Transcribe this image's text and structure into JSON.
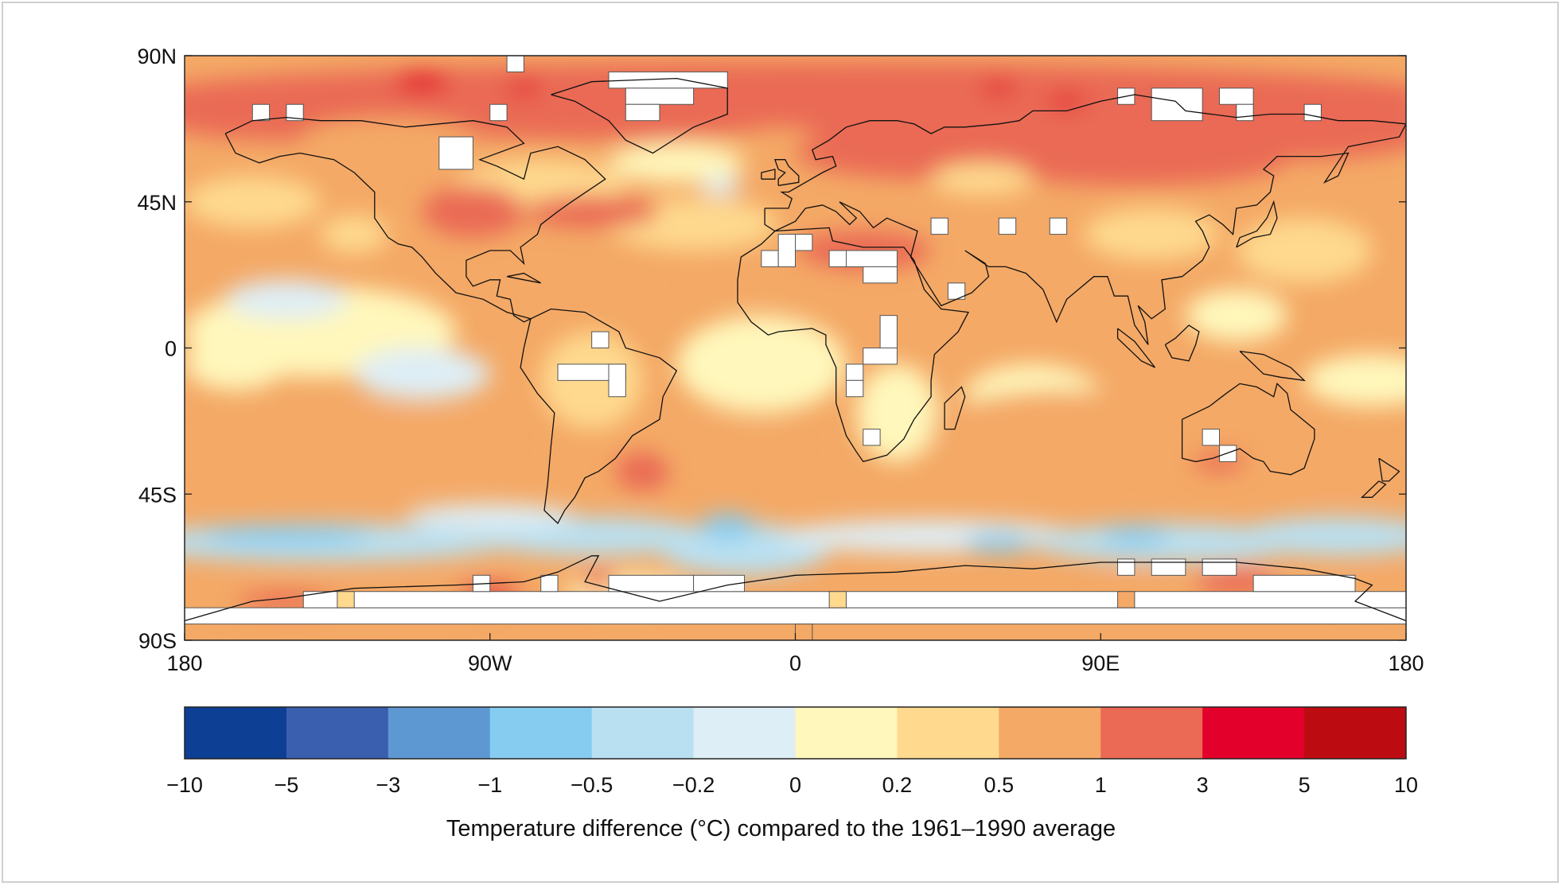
{
  "map": {
    "lat_labels": [
      "90N",
      "45N",
      "0",
      "45S",
      "90S"
    ],
    "lon_labels": [
      "180",
      "90W",
      "0",
      "90E",
      "180"
    ]
  },
  "legend": {
    "bounds": [
      "−10",
      "−5",
      "−3",
      "−1",
      "−0.5",
      "−0.2",
      "0",
      "0.2",
      "0.5",
      "1",
      "3",
      "5",
      "10"
    ],
    "colors": [
      "#0d3f94",
      "#3a5fae",
      "#5e98d2",
      "#86ccf1",
      "#b9e0f1",
      "#deeef6",
      "#fff7bb",
      "#fed98e",
      "#f4a966",
      "#ea6a55",
      "#e3002b",
      "#bd0b12"
    ],
    "caption": "Temperature difference (°C) compared to the 1961–1990 average"
  },
  "colors": {
    "no_data": "#ffffff",
    "coastline": "#111111"
  }
}
